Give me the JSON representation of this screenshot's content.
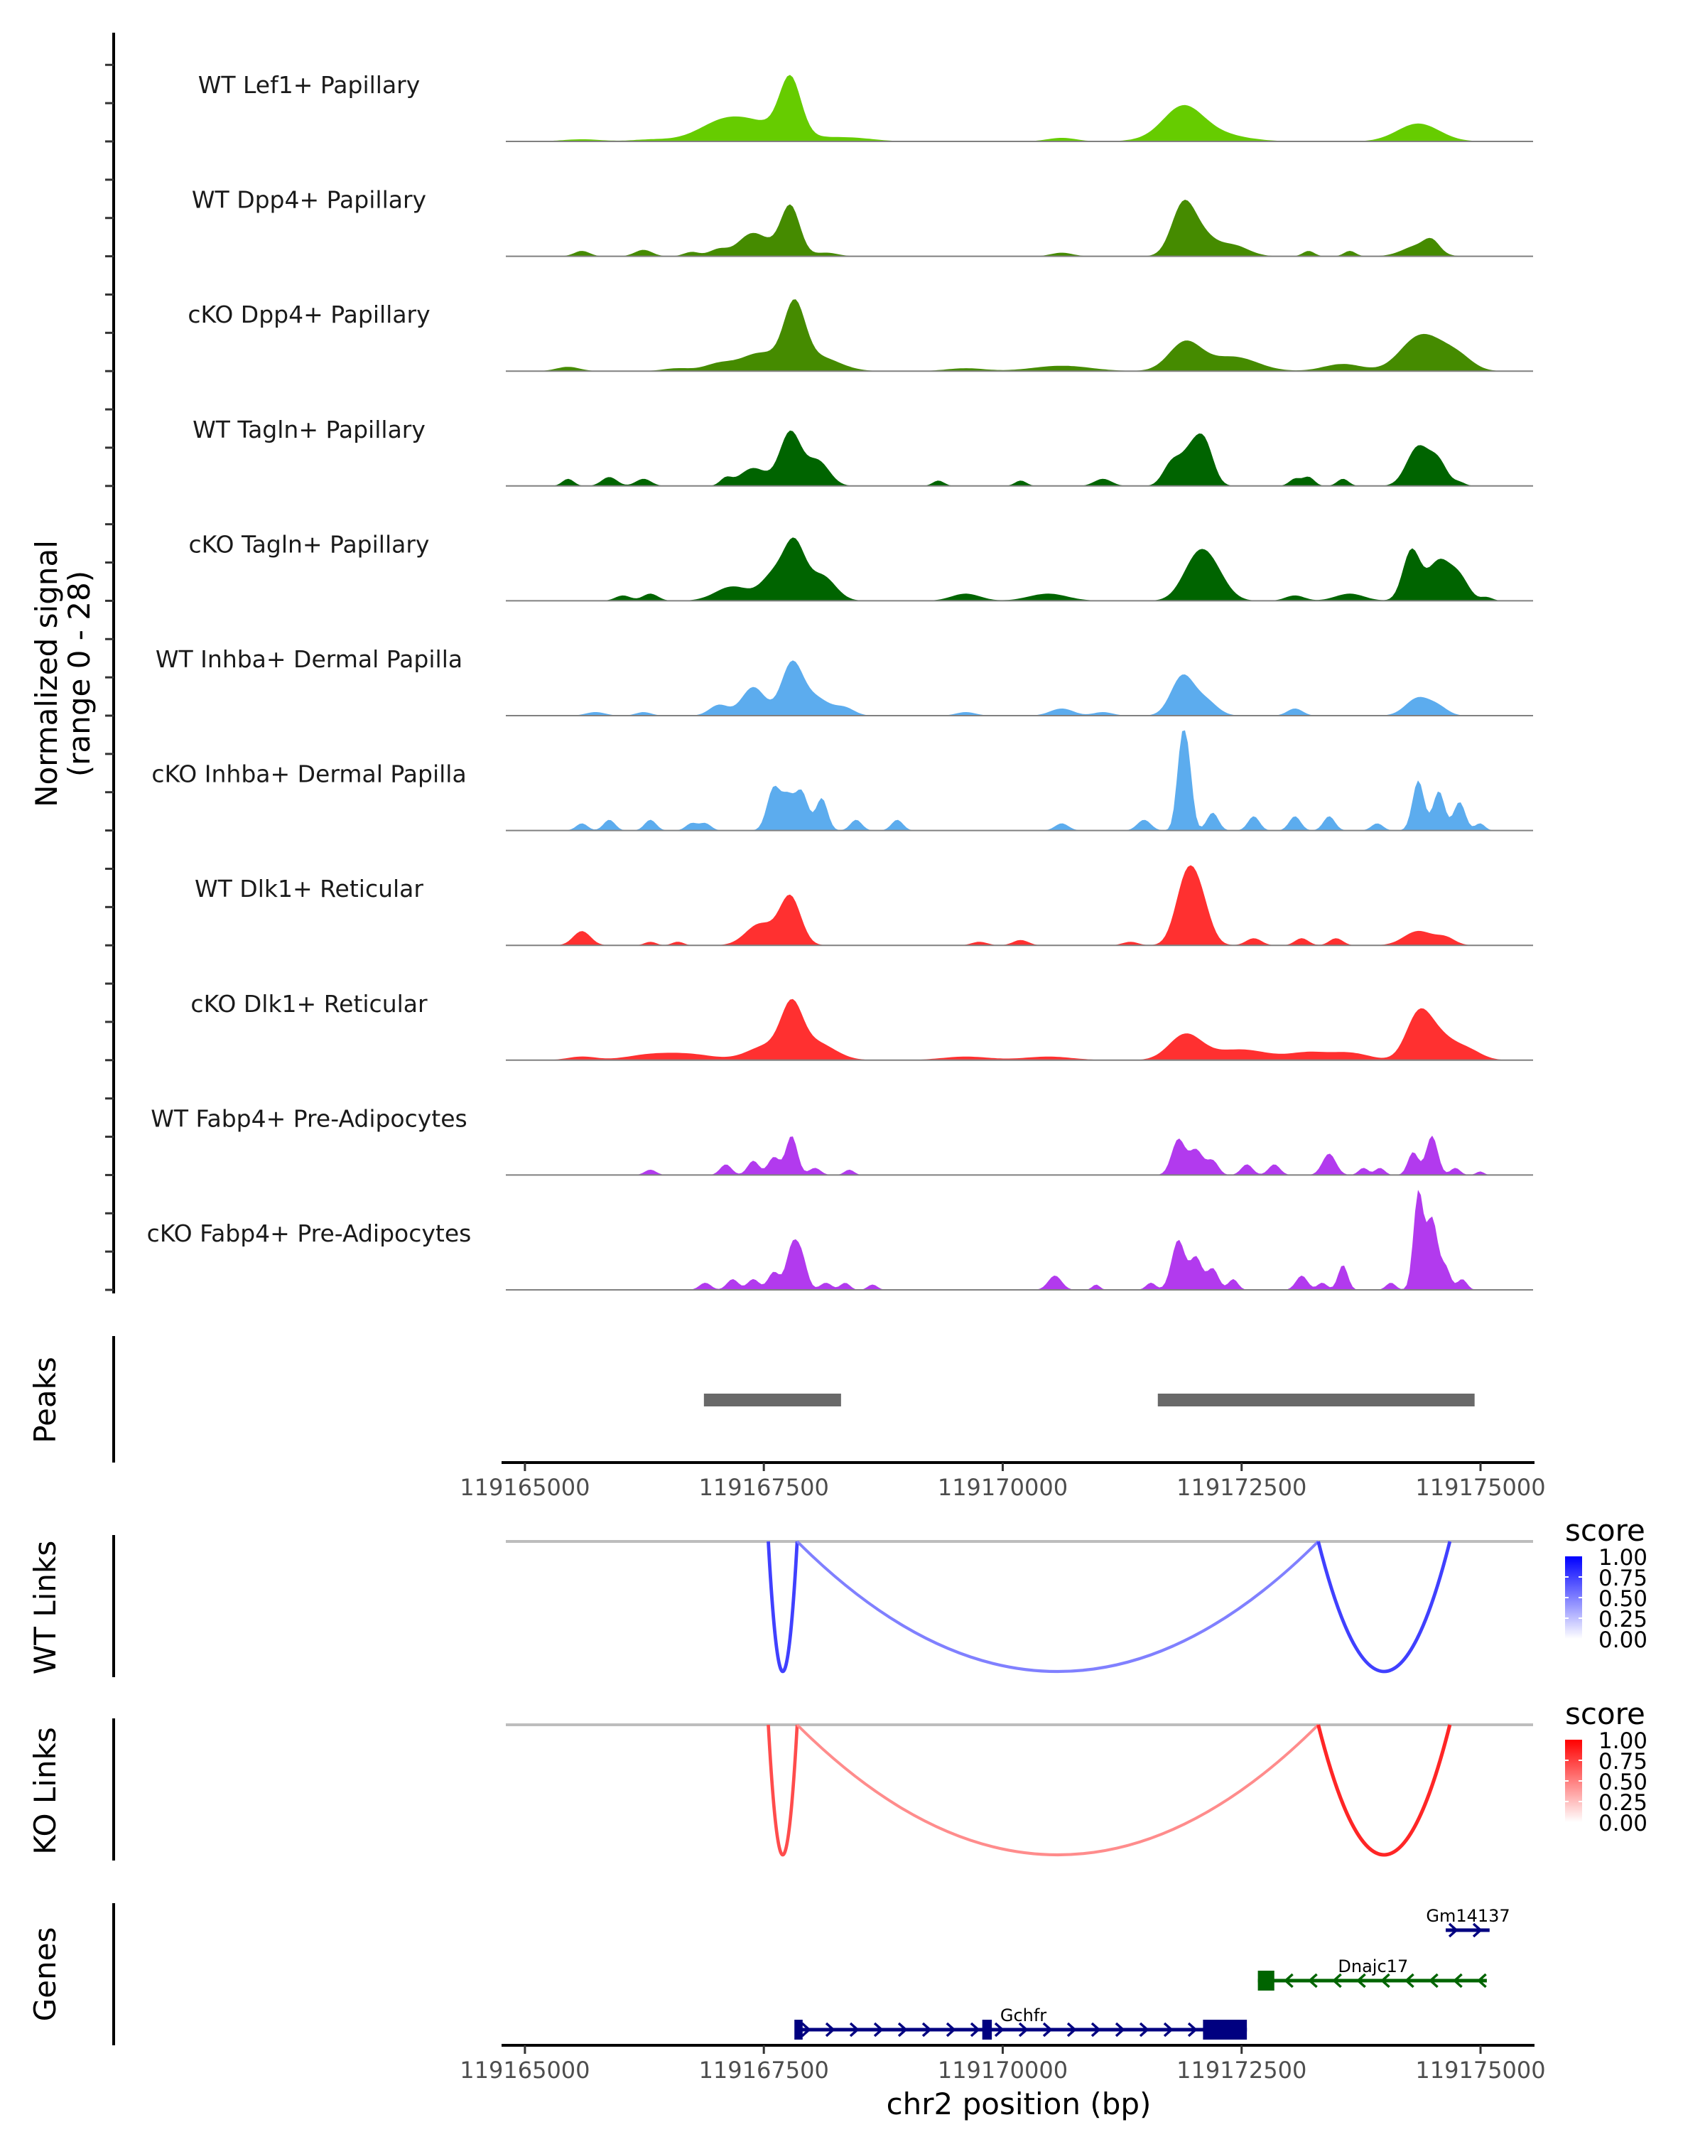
{
  "chart_data": {
    "type": "area",
    "title": "",
    "ylabel": "Normalized signal\n(range 0 - 28)",
    "ylabel_lines": [
      "Normalized signal",
      "(range 0 - 28)"
    ],
    "ylim": [
      0,
      28
    ],
    "xlabel": "chr2 position (bp)",
    "xlim": [
      119164800,
      119175550
    ],
    "xticks": [
      119165000,
      119167500,
      119170000,
      119172500,
      119175000
    ],
    "xtick_labels": [
      "119165000",
      "119167500",
      "119170000",
      "119172500",
      "119175000"
    ],
    "coverage_tracks": [
      {
        "name": "WT Lef1+ Papillary",
        "color": "#66CC00",
        "peaks": [
          [
            119167777,
            15.5,
            110
          ],
          [
            119167390,
            5,
            380
          ],
          [
            119167060,
            3,
            250
          ],
          [
            119171881,
            7.5,
            200
          ],
          [
            119172060,
            3,
            350
          ],
          [
            119174349,
            5,
            220
          ],
          [
            119170618,
            1,
            150
          ],
          [
            119165596,
            0.6,
            200
          ],
          [
            119166313,
            0.5,
            200
          ],
          [
            119168394,
            1,
            250
          ]
        ]
      },
      {
        "name": "WT Dpp4+ Papillary",
        "color": "#458B00",
        "peaks": [
          [
            119167777,
            14,
            100
          ],
          [
            119167461,
            4.5,
            150
          ],
          [
            119167318,
            3,
            120
          ],
          [
            119171881,
            12.5,
            120
          ],
          [
            119172060,
            6,
            150
          ],
          [
            119172412,
            3,
            160
          ],
          [
            119174349,
            3,
            160
          ],
          [
            119174492,
            3,
            80
          ],
          [
            119167031,
            2,
            100
          ],
          [
            119165596,
            1.5,
            80
          ],
          [
            119166241,
            1.8,
            90
          ],
          [
            119166744,
            1.2,
            80
          ],
          [
            119170618,
            1,
            110
          ],
          [
            119173201,
            1.5,
            60
          ],
          [
            119173632,
            1.5,
            60
          ],
          [
            119168150,
            1,
            120
          ]
        ]
      },
      {
        "name": "cKO Dpp4+ Papillary",
        "color": "#458B00",
        "peaks": [
          [
            119167820,
            17,
            110
          ],
          [
            119167461,
            5,
            200
          ],
          [
            119168064,
            4,
            220
          ],
          [
            119171910,
            8,
            170
          ],
          [
            119172412,
            4,
            250
          ],
          [
            119174492,
            7,
            200
          ],
          [
            119174277,
            5,
            180
          ],
          [
            119174780,
            3,
            150
          ],
          [
            119167031,
            2,
            150
          ],
          [
            119165452,
            1.2,
            120
          ],
          [
            119166600,
            0.8,
            150
          ],
          [
            119173560,
            2,
            200
          ],
          [
            119170618,
            1.5,
            300
          ],
          [
            119169614,
            0.8,
            200
          ]
        ]
      },
      {
        "name": "WT Tagln+ Papillary",
        "color": "#006400",
        "peaks": [
          [
            119167777,
            15,
            110
          ],
          [
            119168064,
            7,
            120
          ],
          [
            119167390,
            5,
            140
          ],
          [
            119171981,
            10,
            110
          ],
          [
            119172125,
            9,
            90
          ],
          [
            119171766,
            6,
            90
          ],
          [
            119174349,
            11,
            120
          ],
          [
            119174564,
            6,
            90
          ],
          [
            119165452,
            2,
            60
          ],
          [
            119165883,
            2.5,
            80
          ],
          [
            119166241,
            2,
            80
          ],
          [
            119167103,
            2,
            60
          ],
          [
            119169327,
            1.5,
            60
          ],
          [
            119170188,
            1.5,
            60
          ],
          [
            119171049,
            2,
            90
          ],
          [
            119173058,
            2,
            60
          ],
          [
            119173201,
            2.5,
            60
          ],
          [
            119173560,
            2,
            60
          ],
          [
            119174780,
            1,
            60
          ]
        ]
      },
      {
        "name": "cKO Tagln+ Papillary",
        "color": "#006400",
        "peaks": [
          [
            119167820,
            15,
            110
          ],
          [
            119167605,
            7,
            130
          ],
          [
            119168107,
            7,
            140
          ],
          [
            119167174,
            4,
            180
          ],
          [
            119172024,
            10,
            150
          ],
          [
            119172197,
            7,
            150
          ],
          [
            119174277,
            14,
            90
          ],
          [
            119174564,
            11,
            120
          ],
          [
            119174780,
            6,
            100
          ],
          [
            119166026,
            1.5,
            80
          ],
          [
            119166313,
            2,
            80
          ],
          [
            119169614,
            2,
            150
          ],
          [
            119170475,
            2,
            200
          ],
          [
            119173632,
            2,
            150
          ],
          [
            119173058,
            1.5,
            100
          ],
          [
            119175066,
            1,
            60
          ]
        ]
      },
      {
        "name": "WT Inhba+ Dermal Papilla",
        "color": "#5CACEE",
        "peaks": [
          [
            119167791,
            14,
            110
          ],
          [
            119167390,
            8,
            120
          ],
          [
            119167031,
            3,
            100
          ],
          [
            119168035,
            5,
            150
          ],
          [
            119168351,
            2,
            100
          ],
          [
            119171881,
            11,
            120
          ],
          [
            119172125,
            4,
            120
          ],
          [
            119173058,
            2,
            80
          ],
          [
            119174349,
            5,
            130
          ],
          [
            119174564,
            2,
            100
          ],
          [
            119165739,
            1,
            100
          ],
          [
            119170618,
            2,
            120
          ],
          [
            119171049,
            1,
            100
          ],
          [
            119166241,
            1,
            80
          ],
          [
            119169614,
            1,
            100
          ]
        ]
      },
      {
        "name": "cKO Inhba+ Dermal Papilla",
        "color": "#5CACEE",
        "peaks": [
          [
            119167605,
            12,
            70
          ],
          [
            119167892,
            11,
            70
          ],
          [
            119168107,
            9,
            60
          ],
          [
            119167748,
            8,
            60
          ],
          [
            119171867,
            20,
            50
          ],
          [
            119171938,
            17,
            50
          ],
          [
            119172197,
            5,
            60
          ],
          [
            119172627,
            4,
            60
          ],
          [
            119173058,
            4,
            60
          ],
          [
            119173416,
            4,
            60
          ],
          [
            119174349,
            14,
            60
          ],
          [
            119174564,
            11,
            60
          ],
          [
            119174780,
            8,
            60
          ],
          [
            119165596,
            2,
            60
          ],
          [
            119165883,
            3,
            60
          ],
          [
            119166313,
            3,
            60
          ],
          [
            119166744,
            2,
            60
          ],
          [
            119166887,
            2,
            60
          ],
          [
            119168466,
            3,
            60
          ],
          [
            119168896,
            3,
            60
          ],
          [
            119170618,
            2,
            70
          ],
          [
            119171479,
            3,
            70
          ],
          [
            119173919,
            2,
            60
          ],
          [
            119174995,
            2,
            50
          ]
        ]
      },
      {
        "name": "WT Dlk1+ Reticular",
        "color": "#FF3030",
        "peaks": [
          [
            119167777,
            13.5,
            110
          ],
          [
            119167461,
            6,
            150
          ],
          [
            119171910,
            16,
            110
          ],
          [
            119172060,
            12,
            110
          ],
          [
            119165596,
            4,
            90
          ],
          [
            119166313,
            1,
            60
          ],
          [
            119166600,
            1,
            60
          ],
          [
            119169757,
            1,
            80
          ],
          [
            119170188,
            1.5,
            80
          ],
          [
            119171336,
            1,
            80
          ],
          [
            119172627,
            2,
            80
          ],
          [
            119173129,
            2,
            70
          ],
          [
            119173488,
            2,
            70
          ],
          [
            119174349,
            4,
            150
          ],
          [
            119174636,
            2,
            100
          ]
        ]
      },
      {
        "name": "cKO Dlk1+ Reticular",
        "color": "#FF3030",
        "peaks": [
          [
            119167791,
            13,
            110
          ],
          [
            119168035,
            5,
            200
          ],
          [
            119167533,
            4,
            200
          ],
          [
            119171910,
            7,
            170
          ],
          [
            119172484,
            3,
            300
          ],
          [
            119174349,
            12,
            130
          ],
          [
            119174564,
            6,
            150
          ],
          [
            119174852,
            3,
            150
          ],
          [
            119165596,
            1,
            150
          ],
          [
            119166313,
            1.5,
            250
          ],
          [
            119166744,
            1.5,
            250
          ],
          [
            119169614,
            1,
            250
          ],
          [
            119170475,
            1,
            250
          ],
          [
            119173201,
            2,
            200
          ],
          [
            119173632,
            2,
            200
          ]
        ]
      },
      {
        "name": "WT Fabp4+ Pre-Adipocytes",
        "color": "#B23AEE",
        "peaks": [
          [
            119167791,
            11,
            60
          ],
          [
            119167605,
            5,
            60
          ],
          [
            119167390,
            4,
            60
          ],
          [
            119167103,
            3,
            60
          ],
          [
            119168035,
            2,
            60
          ],
          [
            119168394,
            1.5,
            50
          ],
          [
            119166313,
            1.5,
            60
          ],
          [
            119171838,
            10,
            70
          ],
          [
            119172024,
            7,
            70
          ],
          [
            119172197,
            4,
            60
          ],
          [
            119172555,
            3,
            60
          ],
          [
            119172842,
            3,
            60
          ],
          [
            119173416,
            6,
            70
          ],
          [
            119173775,
            2,
            50
          ],
          [
            119173947,
            2,
            50
          ],
          [
            119174320,
            3,
            50
          ],
          [
            119174492,
            11,
            60
          ],
          [
            119174277,
            4,
            50
          ],
          [
            119174737,
            2,
            50
          ],
          [
            119174995,
            1,
            40
          ]
        ]
      },
      {
        "name": "cKO Fabp4+ Pre-Adipocytes",
        "color": "#B23AEE",
        "peaks": [
          [
            119167791,
            11,
            60
          ],
          [
            119167892,
            9,
            60
          ],
          [
            119167605,
            5,
            60
          ],
          [
            119167390,
            3,
            60
          ],
          [
            119167174,
            3,
            60
          ],
          [
            119166887,
            2,
            60
          ],
          [
            119168150,
            2,
            60
          ],
          [
            119168351,
            2,
            50
          ],
          [
            119168638,
            1.5,
            50
          ],
          [
            119170546,
            4,
            70
          ],
          [
            119170977,
            1.5,
            40
          ],
          [
            119171838,
            14,
            70
          ],
          [
            119172024,
            9,
            60
          ],
          [
            119172197,
            6,
            60
          ],
          [
            119171551,
            2,
            50
          ],
          [
            119172412,
            3,
            50
          ],
          [
            119173129,
            4,
            60
          ],
          [
            119173560,
            7,
            50
          ],
          [
            119174349,
            27,
            50
          ],
          [
            119174492,
            20,
            60
          ],
          [
            119174636,
            6,
            50
          ],
          [
            119173344,
            2,
            50
          ],
          [
            119174062,
            2,
            50
          ],
          [
            119174808,
            3,
            50
          ]
        ]
      }
    ],
    "peaks_track": {
      "name": "Peaks",
      "color": "#696969",
      "regions": [
        [
          119166873,
          119168308
        ],
        [
          119171623,
          119174938
        ]
      ]
    },
    "links_tracks": [
      {
        "name": "WT Links",
        "legend_title": "score",
        "low_color": "#FFFFFF",
        "high_color": "#0000FF",
        "links": [
          {
            "start": 119167547,
            "end": 119167849,
            "score": 0.6
          },
          {
            "start": 119167849,
            "end": 119173302,
            "score": 0.35
          },
          {
            "start": 119173302,
            "end": 119174679,
            "score": 0.6
          }
        ]
      },
      {
        "name": "KO Links",
        "legend_title": "score",
        "low_color": "#FFFFFF",
        "high_color": "#FF0000",
        "links": [
          {
            "start": 119167547,
            "end": 119167849,
            "score": 0.55
          },
          {
            "start": 119167849,
            "end": 119173302,
            "score": 0.3
          },
          {
            "start": 119173302,
            "end": 119174679,
            "score": 0.7
          }
        ]
      }
    ],
    "legend_ticks": [
      "1.00",
      "0.75",
      "0.50",
      "0.25",
      "0.00"
    ],
    "genes_track": {
      "name": "Genes",
      "genes": [
        {
          "name": "Gchfr",
          "strand": "+",
          "color": "#000080",
          "start": 119167863,
          "end": 119172555,
          "row": 0,
          "exons": [
            [
              119167820,
              119167906
            ],
            [
              119169786,
              119169886
            ],
            [
              119172096,
              119172555
            ]
          ],
          "label_pos": 119170216
        },
        {
          "name": "Dnajc17",
          "strand": "-",
          "color": "#006400",
          "start": 119172670,
          "end": 119175066,
          "row": 1,
          "exons": [
            [
              119172670,
              119172842
            ]
          ],
          "label_pos": 119173876
        },
        {
          "name": "Gm14137",
          "strand": "+",
          "color": "#000080",
          "start": 119174636,
          "end": 119175095,
          "row": 2,
          "exons": [],
          "label_pos": 119174870
        }
      ]
    }
  }
}
